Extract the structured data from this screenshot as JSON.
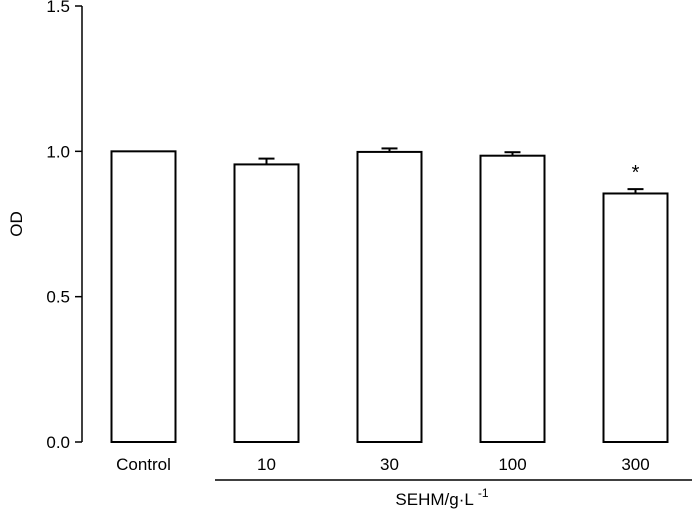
{
  "chart_data": {
    "type": "bar",
    "categories": [
      "Control",
      "10",
      "30",
      "100",
      "300"
    ],
    "values": [
      1.0,
      0.955,
      0.998,
      0.985,
      0.855
    ],
    "errors": [
      0,
      0.02,
      0.012,
      0.012,
      0.015
    ],
    "annotations": [
      "",
      "",
      "",
      "",
      "*"
    ],
    "title": "",
    "xlabel": "SEHM/g·L",
    "xlabel_superscript": "-1",
    "ylabel": "OD",
    "ylim": [
      0,
      1.5
    ],
    "yticks": [
      0.0,
      0.5,
      1.0,
      1.5
    ],
    "ytick_labels": [
      "0.0",
      "0.5",
      "1.0",
      "1.5"
    ],
    "bar_fill": "#ffffff",
    "bar_stroke": "#000000",
    "grid": false,
    "legend": "none"
  }
}
